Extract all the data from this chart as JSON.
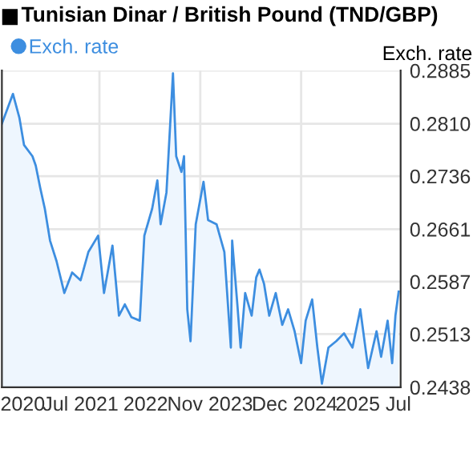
{
  "chart_data": {
    "type": "area",
    "title": "Tunisian Dinar / British Pound (TND/GBP)",
    "ylabel": "Exch. rate",
    "x": [
      2019.55,
      2019.72,
      2019.82,
      2019.89,
      2020.02,
      2020.07,
      2020.14,
      2020.21,
      2020.29,
      2020.39,
      2020.51,
      2020.63,
      2020.76,
      2020.88,
      2021.03,
      2021.12,
      2021.25,
      2021.35,
      2021.44,
      2021.54,
      2021.67,
      2021.74,
      2021.86,
      2021.94,
      2021.99,
      2022.08,
      2022.18,
      2022.23,
      2022.31,
      2022.35,
      2022.4,
      2022.45,
      2022.53,
      2022.65,
      2022.72,
      2022.85,
      2022.97,
      2023.07,
      2023.09,
      2023.17,
      2023.22,
      2023.29,
      2023.39,
      2023.46,
      2023.51,
      2023.58,
      2023.66,
      2023.76,
      2023.86,
      2023.95,
      2024.05,
      2024.15,
      2024.22,
      2024.32,
      2024.4,
      2024.47,
      2024.57,
      2024.69,
      2024.81,
      2024.94,
      2025.06,
      2025.18,
      2025.31,
      2025.38,
      2025.48,
      2025.55,
      2025.6,
      2025.65
    ],
    "series": [
      {
        "name": "Exch. rate",
        "color": "#3d8ee0",
        "values": [
          0.281,
          0.2852,
          0.2818,
          0.278,
          0.2764,
          0.2751,
          0.2719,
          0.269,
          0.2645,
          0.2616,
          0.2571,
          0.26,
          0.2589,
          0.2629,
          0.2652,
          0.2571,
          0.2638,
          0.2539,
          0.2555,
          0.2537,
          0.2532,
          0.2652,
          0.269,
          0.273,
          0.2668,
          0.2713,
          0.2881,
          0.2764,
          0.2742,
          0.2764,
          0.2548,
          0.2503,
          0.2668,
          0.2728,
          0.2674,
          0.2668,
          0.2629,
          0.2494,
          0.2645,
          0.2555,
          0.2494,
          0.2571,
          0.2539,
          0.2593,
          0.2604,
          0.2584,
          0.2539,
          0.2571,
          0.2526,
          0.2548,
          0.2517,
          0.2472,
          0.2532,
          0.2562,
          0.2494,
          0.2443,
          0.2494,
          0.2503,
          0.2514,
          0.2494,
          0.2548,
          0.2465,
          0.2517,
          0.2481,
          0.2532,
          0.2472,
          0.2539,
          0.2573
        ]
      }
    ],
    "xlim": [
      2019.55,
      2025.68
    ],
    "xticks": [
      {
        "value": 2019.87,
        "label": "2020"
      },
      {
        "value": 2020.76,
        "label": "Jul 2021"
      },
      {
        "value": 2021.76,
        "label": "2022"
      },
      {
        "value": 2022.75,
        "label": "Nov 2023"
      },
      {
        "value": 2024.05,
        "label": "Dec 2024"
      },
      {
        "value": 2025.26,
        "label": "2025 Jul"
      }
    ],
    "ylim": [
      0.2438,
      0.2885
    ],
    "yticks": [
      0.2438,
      0.2513,
      0.2587,
      0.2661,
      0.2736,
      {
        "value": 0.281,
        "label": "0.2810"
      },
      0.2885
    ],
    "ref_lines": [
      {
        "axis": "x",
        "value": 2021.05,
        "color": "#e6e6e6"
      },
      {
        "axis": "x",
        "value": 2022.6,
        "color": "#e6e6e6"
      },
      {
        "axis": "x",
        "value": 2024.15,
        "color": "#e6e6e6"
      }
    ],
    "grid": "y",
    "legend": "top left",
    "marker": "none",
    "line_style": "solid"
  }
}
